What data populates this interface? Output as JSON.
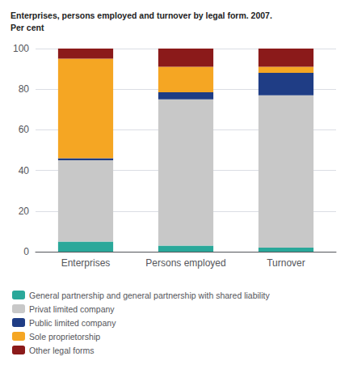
{
  "chart_data": {
    "type": "bar",
    "stacked": true,
    "title": "Enterprises, persons employed and turnover by legal form. 2007.",
    "subtitle": "Per cent",
    "categories": [
      "Enterprises",
      "Persons employed",
      "Turnover"
    ],
    "series": [
      {
        "name": "General partnership and general partnership with shared liability",
        "color": "#2aa89a",
        "values": [
          5.0,
          3.0,
          2.0
        ]
      },
      {
        "name": "Privat limited company",
        "color": "#c8c8c8",
        "values": [
          40.0,
          72.0,
          75.0
        ]
      },
      {
        "name": "Public limited company",
        "color": "#1f3d85",
        "values": [
          1.0,
          3.5,
          11.0
        ]
      },
      {
        "name": "Sole proprietorship",
        "color": "#f5a623",
        "values": [
          49.0,
          12.5,
          3.0
        ]
      },
      {
        "name": "Other legal forms",
        "color": "#8b1a1a",
        "values": [
          5.0,
          9.0,
          9.0
        ]
      }
    ],
    "ylim": [
      0,
      100
    ],
    "yticks": [
      0,
      20,
      40,
      60,
      80,
      100
    ],
    "grid": true,
    "legend": "bottom"
  }
}
